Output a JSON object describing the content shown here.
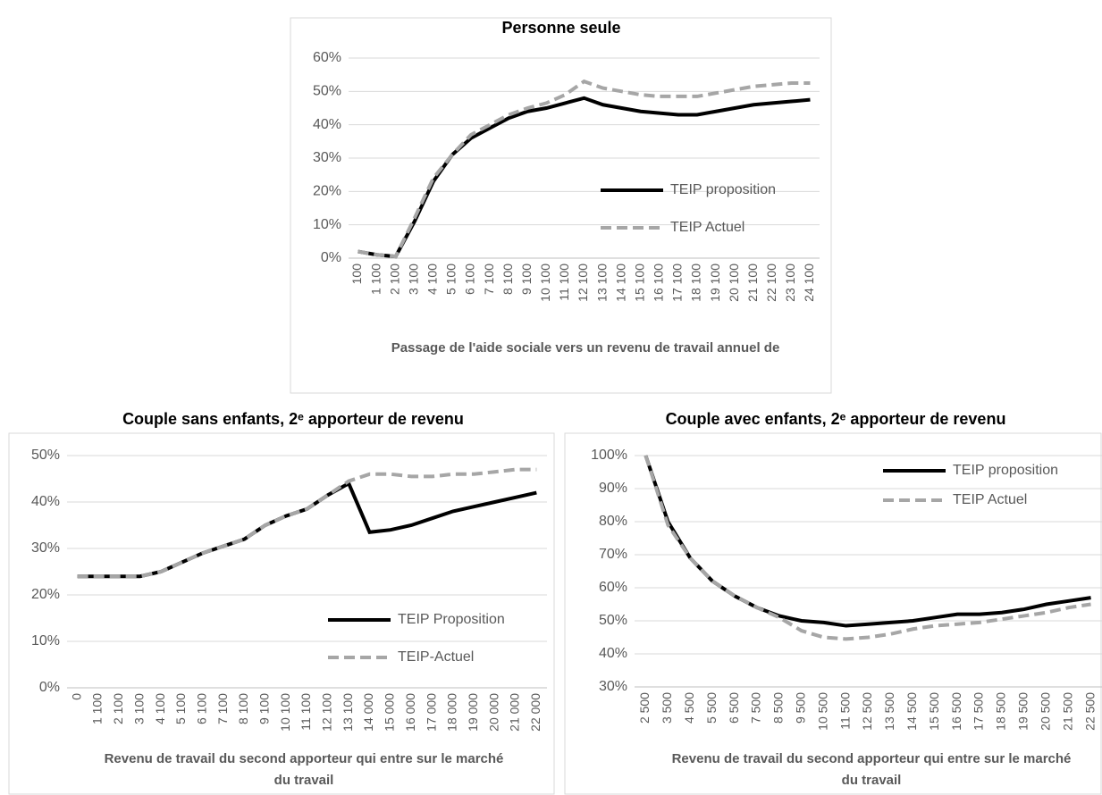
{
  "chart_data": [
    {
      "type": "line",
      "title": "Personne seule",
      "x_label": "Passage de l'aide sociale vers un revenu de travail annuel de",
      "categories": [
        "100",
        "1 100",
        "2 100",
        "3 100",
        "4 100",
        "5 100",
        "6 100",
        "7 100",
        "8 100",
        "9 100",
        "10 100",
        "11 100",
        "12 100",
        "13 100",
        "14 100",
        "15 100",
        "16 100",
        "17 100",
        "18 100",
        "19 100",
        "20 100",
        "21 100",
        "22 100",
        "23 100",
        "24 100"
      ],
      "series": [
        {
          "name": "TEIP proposition",
          "color": "#000000",
          "style": "solid",
          "values": [
            2,
            1,
            0.5,
            11,
            23,
            31,
            36,
            39,
            42,
            44,
            45,
            46.5,
            48,
            46,
            45,
            44,
            43.5,
            43,
            43,
            44,
            45,
            46,
            46.5,
            47,
            47.5
          ]
        },
        {
          "name": "TEIP Actuel",
          "color": "#a6a6a6",
          "style": "dashed",
          "values": [
            2,
            1,
            0.5,
            12,
            24,
            31,
            37,
            40,
            43,
            45,
            46.5,
            49,
            53,
            51,
            50,
            49,
            48.5,
            48.5,
            48.5,
            49.5,
            50.5,
            51.5,
            52,
            52.5,
            52.5
          ]
        }
      ],
      "ylim": [
        0,
        60
      ],
      "yticks": [
        {
          "value": 0,
          "label": "0%"
        },
        {
          "value": 10,
          "label": "10%"
        },
        {
          "value": 20,
          "label": "20%"
        },
        {
          "value": 30,
          "label": "30%"
        },
        {
          "value": 40,
          "label": "40%"
        },
        {
          "value": 50,
          "label": "50%"
        },
        {
          "value": 60,
          "label": "60%"
        }
      ],
      "grid": true,
      "legend": "lower right"
    },
    {
      "type": "line",
      "title": "Couple sans enfants, 2ᵉ apporteur de revenu",
      "x_label": "Revenu de travail du second apporteur qui entre sur le marché du travail",
      "categories": [
        "0",
        "1 100",
        "2 100",
        "3 100",
        "4 100",
        "5 100",
        "6 100",
        "7 100",
        "8 100",
        "9 100",
        "10 100",
        "11 100",
        "12 100",
        "13 100",
        "14 000",
        "15 000",
        "16 000",
        "17 000",
        "18 000",
        "19 000",
        "20 000",
        "21 000",
        "22 000"
      ],
      "series": [
        {
          "name": "TEIP Proposition",
          "color": "#000000",
          "style": "solid",
          "values": [
            24,
            24,
            24,
            24,
            25,
            27,
            29,
            30.5,
            32,
            35,
            37,
            38.5,
            41.5,
            44,
            33.5,
            34,
            35,
            36.5,
            38,
            39,
            40,
            41,
            42
          ]
        },
        {
          "name": "TEIP-Actuel",
          "color": "#a6a6a6",
          "style": "dashed",
          "values": [
            24,
            24,
            24,
            24,
            25,
            27,
            29,
            30.5,
            32,
            35,
            37,
            38.5,
            41.5,
            44.5,
            46,
            46,
            45.5,
            45.5,
            46,
            46,
            46.5,
            47,
            47
          ]
        }
      ],
      "ylim": [
        0,
        50
      ],
      "yticks": [
        {
          "value": 0,
          "label": "0%"
        },
        {
          "value": 10,
          "label": "10%"
        },
        {
          "value": 20,
          "label": "20%"
        },
        {
          "value": 30,
          "label": "30%"
        },
        {
          "value": 40,
          "label": "40%"
        },
        {
          "value": 50,
          "label": "50%"
        }
      ],
      "grid": true,
      "legend": "lower right"
    },
    {
      "type": "line",
      "title": "Couple avec enfants, 2ᵉ apporteur de revenu",
      "x_label": "Revenu de travail du second apporteur qui entre sur le marché du travail",
      "categories": [
        "2 500",
        "3 500",
        "4 500",
        "5 500",
        "6 500",
        "7 500",
        "8 500",
        "9 500",
        "10 500",
        "11 500",
        "12 500",
        "13 500",
        "14 500",
        "15 500",
        "16 500",
        "17 500",
        "18 500",
        "19 500",
        "20 500",
        "21 500",
        "22 500"
      ],
      "series": [
        {
          "name": "TEIP proposition",
          "color": "#000000",
          "style": "solid",
          "values": [
            100,
            80,
            69,
            62,
            57.5,
            54,
            51.5,
            50,
            49.5,
            48.5,
            49,
            49.5,
            50,
            51,
            52,
            52,
            52.5,
            53.5,
            55,
            56,
            57
          ]
        },
        {
          "name": "TEIP Actuel",
          "color": "#a6a6a6",
          "style": "dashed",
          "values": [
            100,
            79,
            69,
            62,
            57.5,
            54,
            51,
            47,
            45,
            44.5,
            45,
            46,
            47.5,
            48.5,
            49,
            49.5,
            50.5,
            51.5,
            52.5,
            54,
            55
          ]
        }
      ],
      "ylim": [
        30,
        100
      ],
      "yticks": [
        {
          "value": 30,
          "label": "30%"
        },
        {
          "value": 40,
          "label": "40%"
        },
        {
          "value": 50,
          "label": "50%"
        },
        {
          "value": 60,
          "label": "60%"
        },
        {
          "value": 70,
          "label": "70%"
        },
        {
          "value": 80,
          "label": "80%"
        },
        {
          "value": 90,
          "label": "90%"
        },
        {
          "value": 100,
          "label": "100%"
        }
      ],
      "grid": true,
      "legend": "upper right"
    }
  ]
}
